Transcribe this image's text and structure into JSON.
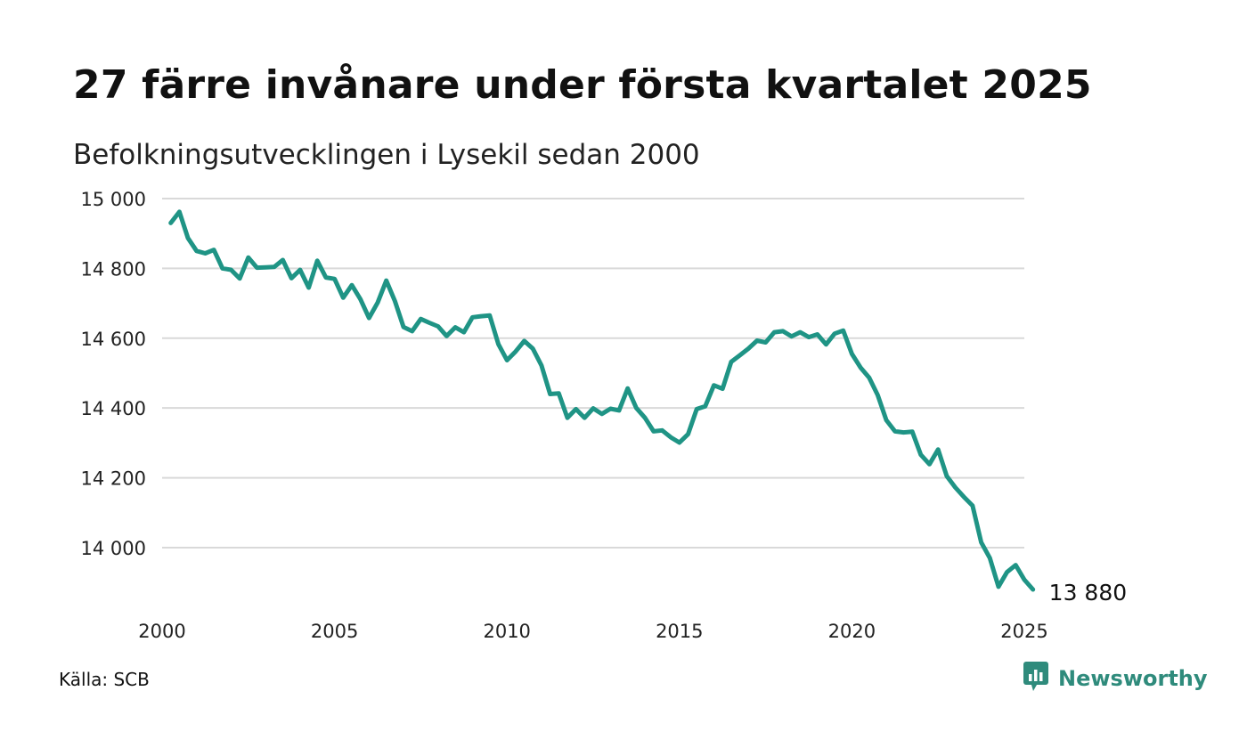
{
  "title": "27 färre invånare under första kvartalet 2025",
  "subtitle": "Befolkningsutvecklingen i Lysekil sedan 2000",
  "source": "Källa: SCB",
  "brand": {
    "name": "Newsworthy",
    "icon": "bar-chart-logo-icon",
    "color": "#2f8b7c"
  },
  "chart_data": {
    "type": "line",
    "title": "27 färre invånare under första kvartalet 2025",
    "subtitle": "Befolkningsutvecklingen i Lysekil sedan 2000",
    "xlim": [
      2000,
      2025
    ],
    "ylim": [
      13880,
      15000
    ],
    "grid": "horizontal",
    "line_color": "#1f9485",
    "y_ticks": [
      {
        "value": 15000,
        "label": "15 000"
      },
      {
        "value": 14800,
        "label": "14 800"
      },
      {
        "value": 14600,
        "label": "14 600"
      },
      {
        "value": 14400,
        "label": "14 400"
      },
      {
        "value": 14200,
        "label": "14 200"
      },
      {
        "value": 14000,
        "label": "14 000"
      }
    ],
    "x_ticks": [
      {
        "value": 2000,
        "label": "2000"
      },
      {
        "value": 2005,
        "label": "2005"
      },
      {
        "value": 2010,
        "label": "2010"
      },
      {
        "value": 2015,
        "label": "2015"
      },
      {
        "value": 2020,
        "label": "2020"
      },
      {
        "value": 2025,
        "label": "2025"
      }
    ],
    "end_label": "13 880",
    "series": [
      {
        "x": [
          2000.25,
          2000.5,
          2000.75,
          2001.0,
          2001.25,
          2001.5,
          2001.75,
          2002.0,
          2002.25,
          2002.5,
          2002.75,
          2003.0,
          2003.25,
          2003.5,
          2003.75,
          2004.0,
          2004.25,
          2004.5,
          2004.75,
          2005.0,
          2005.25,
          2005.5,
          2005.75,
          2006.0,
          2006.25,
          2006.5,
          2006.75,
          2007.0,
          2007.25,
          2007.5,
          2007.75,
          2008.0,
          2008.25,
          2008.5,
          2008.75,
          2009.0,
          2009.25,
          2009.5,
          2009.75,
          2010.0,
          2010.25,
          2010.5,
          2010.75,
          2011.0,
          2011.25,
          2011.5,
          2011.75,
          2012.0,
          2012.25,
          2012.5,
          2012.75,
          2013.0,
          2013.25,
          2013.5,
          2013.75,
          2014.0,
          2014.25,
          2014.5,
          2014.75,
          2015.0,
          2015.25,
          2015.5,
          2015.75,
          2016.0,
          2016.25,
          2016.5,
          2016.75,
          2017.0,
          2017.25,
          2017.5,
          2017.75,
          2018.0,
          2018.25,
          2018.5,
          2018.75,
          2019.0,
          2019.25,
          2019.5,
          2019.75,
          2020.0,
          2020.25,
          2020.5,
          2020.75,
          2021.0,
          2021.25,
          2021.5,
          2021.75,
          2022.0,
          2022.25,
          2022.5,
          2022.75,
          2023.0,
          2023.25,
          2023.5,
          2023.75,
          2024.0,
          2024.25,
          2024.5,
          2024.75,
          2025.0,
          2025.25
        ],
        "values": [
          14930,
          14962,
          14887,
          14850,
          14843,
          14853,
          14800,
          14796,
          14771,
          14831,
          14802,
          14803,
          14804,
          14824,
          14772,
          14796,
          14745,
          14822,
          14774,
          14770,
          14716,
          14752,
          14712,
          14658,
          14702,
          14765,
          14706,
          14632,
          14620,
          14655,
          14644,
          14634,
          14606,
          14631,
          14617,
          14660,
          14663,
          14665,
          14583,
          14537,
          14562,
          14592,
          14570,
          14522,
          14440,
          14442,
          14372,
          14397,
          14372,
          14399,
          14383,
          14398,
          14393,
          14456,
          14400,
          14372,
          14333,
          14336,
          14316,
          14301,
          14325,
          14397,
          14405,
          14465,
          14455,
          14532,
          14551,
          14570,
          14593,
          14588,
          14617,
          14620,
          14605,
          14617,
          14603,
          14611,
          14582,
          14613,
          14622,
          14555,
          14516,
          14487,
          14437,
          14365,
          14333,
          14330,
          14332,
          14266,
          14239,
          14281,
          14205,
          14172,
          14145,
          14120,
          14015,
          13970,
          13888,
          13930,
          13950,
          13908,
          13880
        ]
      }
    ]
  }
}
